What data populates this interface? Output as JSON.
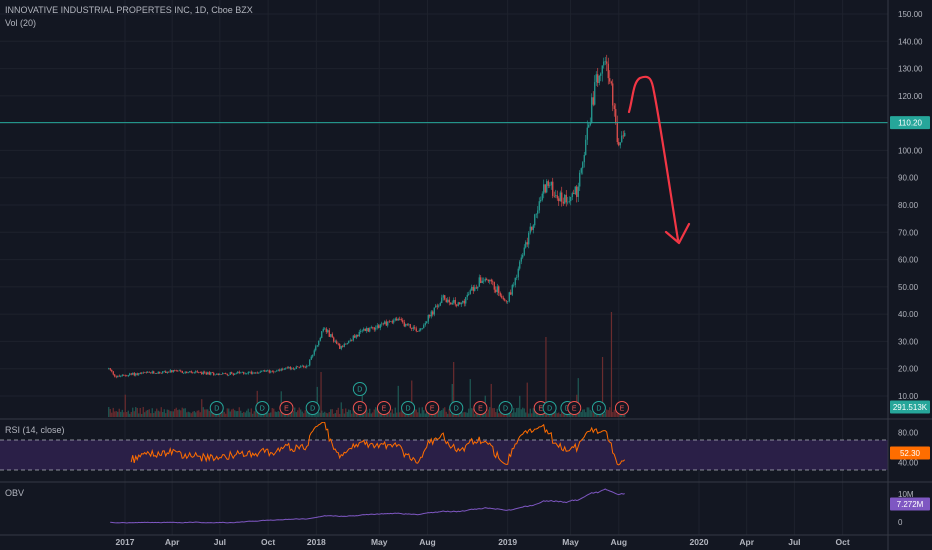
{
  "header": {
    "title": "INNOVATIVE INDUSTRIAL PROPERTES INC, 1D, Cboe BZX",
    "volume_label": "Vol (20)",
    "rsi_label": "RSI (14, close)",
    "obv_label": "OBV"
  },
  "colors": {
    "background": "#131722",
    "grid": "#1e222d",
    "candle_up": "#26a69a",
    "candle_down": "#ef5350",
    "price_line": "#26a69a",
    "rsi_line": "#ff6d00",
    "rsi_band": "#2a1f47",
    "obv_line": "#7e57c2",
    "dividend": "#26a69a",
    "earnings": "#ef5350",
    "annotation": "#f23645"
  },
  "chart_data": [
    {
      "type": "candlestick",
      "title": "INNOVATIVE INDUSTRIAL PROPERTES INC, 1D, Cboe BZX",
      "x_tick_labels": [
        "2017",
        "Apr",
        "Jul",
        "Oct",
        "2018",
        "May",
        "Aug",
        "2019",
        "May",
        "Aug",
        "2020",
        "Apr",
        "Jul",
        "Oct"
      ],
      "y_tick_labels": [
        "150.00",
        "140.00",
        "130.00",
        "120.00",
        "110.00",
        "100.00",
        "90.00",
        "80.00",
        "70.00",
        "60.00",
        "50.00",
        "40.00",
        "30.00",
        "20.00",
        "10.00"
      ],
      "ylim": [
        7,
        152
      ],
      "price_line": {
        "value": 110.2,
        "label": "110.20"
      },
      "volume_label_value": "291.513K",
      "close_points": [
        [
          "2016-12-01",
          20
        ],
        [
          "2016-12-15",
          17
        ],
        [
          "2017-01-15",
          18
        ],
        [
          "2017-04-01",
          19
        ],
        [
          "2017-07-01",
          18
        ],
        [
          "2017-10-01",
          19
        ],
        [
          "2017-12-15",
          21
        ],
        [
          "2018-01-15",
          35
        ],
        [
          "2018-02-15",
          28
        ],
        [
          "2018-04-01",
          34
        ],
        [
          "2018-06-01",
          38
        ],
        [
          "2018-07-15",
          34
        ],
        [
          "2018-09-01",
          46
        ],
        [
          "2018-10-01",
          43
        ],
        [
          "2018-11-15",
          54
        ],
        [
          "2019-01-01",
          45
        ],
        [
          "2019-02-01",
          63
        ],
        [
          "2019-03-15",
          88
        ],
        [
          "2019-04-15",
          82
        ],
        [
          "2019-05-15",
          85
        ],
        [
          "2019-06-15",
          122
        ],
        [
          "2019-07-05",
          138
        ],
        [
          "2019-07-20",
          118
        ],
        [
          "2019-08-01",
          100
        ],
        [
          "2019-08-15",
          108
        ]
      ],
      "events": [
        {
          "label": "D",
          "date": "2017-06-25",
          "row": "bottom"
        },
        {
          "label": "D",
          "date": "2017-09-20",
          "row": "bottom"
        },
        {
          "label": "E",
          "date": "2017-11-05",
          "row": "bottom"
        },
        {
          "label": "D",
          "date": "2017-12-25",
          "row": "bottom"
        },
        {
          "label": "D",
          "date": "2018-03-25",
          "row": "top"
        },
        {
          "label": "E",
          "date": "2018-03-25",
          "row": "bottom"
        },
        {
          "label": "E",
          "date": "2018-05-10",
          "row": "bottom"
        },
        {
          "label": "D",
          "date": "2018-06-25",
          "row": "bottom"
        },
        {
          "label": "E",
          "date": "2018-08-10",
          "row": "bottom"
        },
        {
          "label": "D",
          "date": "2018-09-25",
          "row": "bottom"
        },
        {
          "label": "E",
          "date": "2018-11-10",
          "row": "bottom"
        },
        {
          "label": "D",
          "date": "2018-12-28",
          "row": "bottom"
        },
        {
          "label": "E",
          "date": "2019-03-05",
          "row": "bottom"
        },
        {
          "label": "D",
          "date": "2019-03-22",
          "row": "bottom"
        },
        {
          "label": "D",
          "date": "2019-04-25",
          "row": "bottom"
        },
        {
          "label": "E",
          "date": "2019-05-08",
          "row": "bottom"
        },
        {
          "label": "D",
          "date": "2019-06-24",
          "row": "bottom"
        },
        {
          "label": "E",
          "date": "2019-08-07",
          "row": "bottom"
        }
      ]
    },
    {
      "type": "line",
      "title": "RSI (14, close)",
      "y_tick_labels": [
        "80.00",
        "40.00"
      ],
      "ylim": [
        30,
        90
      ],
      "band": [
        30,
        70
      ],
      "last_value_label": "52.30"
    },
    {
      "type": "line",
      "title": "OBV",
      "y_tick_labels": [
        "10M",
        "0"
      ],
      "last_value_label": "7.272M"
    }
  ]
}
